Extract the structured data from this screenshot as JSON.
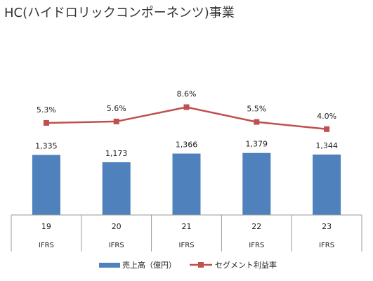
{
  "title": "HC(ハイドロリックコンポーネンツ)事業",
  "chart_data": {
    "type": "bar",
    "title": "HC(ハイドロリックコンポーネンツ)事業",
    "categories": [
      "19",
      "20",
      "21",
      "22",
      "23"
    ],
    "sub_labels": [
      "IFRS",
      "IFRS",
      "IFRS",
      "IFRS",
      "IFRS"
    ],
    "series": [
      {
        "name": "売上高（億円）",
        "type": "bar",
        "color": "#4f81bd",
        "values": [
          1335,
          1173,
          1366,
          1379,
          1344
        ],
        "labels": [
          "1,335",
          "1,173",
          "1,366",
          "1,379",
          "1,344"
        ]
      },
      {
        "name": "セグメント利益率",
        "type": "line",
        "color": "#c0504d",
        "unit": "%",
        "values": [
          5.3,
          5.6,
          8.6,
          5.5,
          4.0
        ],
        "labels": [
          "5.3%",
          "5.6%",
          "8.6%",
          "5.5%",
          "4.0%"
        ]
      }
    ],
    "legend_position": "bottom",
    "grid": false
  }
}
